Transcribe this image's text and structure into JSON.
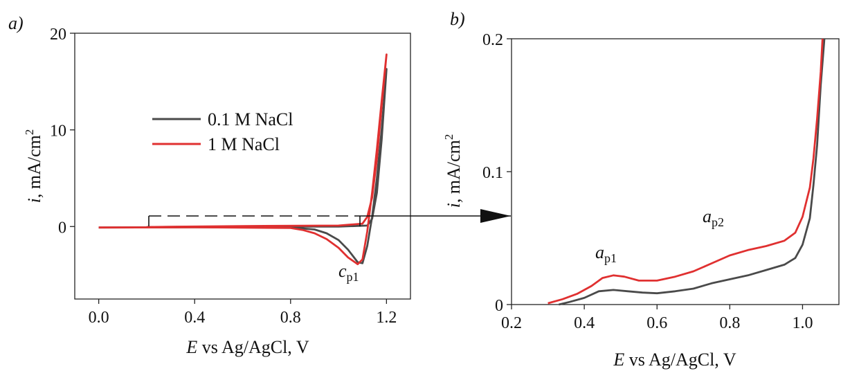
{
  "chart_data": [
    {
      "panel_label": "a)",
      "type": "line",
      "xlabel_italic": "E",
      "xlabel_rest": " vs Ag/AgCl, V",
      "ylabel_italic": "i",
      "ylabel_rest": ", mA/cm",
      "ylabel_sup": "2",
      "xlim": [
        -0.1,
        1.3
      ],
      "ylim": [
        -7.5,
        20
      ],
      "xticks": [
        0.0,
        0.4,
        0.8,
        1.2
      ],
      "xtick_labels": [
        "0.0",
        "0.4",
        "0.8",
        "1.2"
      ],
      "yticks": [
        0,
        10,
        20
      ],
      "ytick_labels": [
        "0",
        "10",
        "20"
      ],
      "grid": false,
      "legend_position": "center-left",
      "series": [
        {
          "name": "0.1 M NaCl",
          "color": "#4a4a4a",
          "points": [
            [
              0.0,
              -0.1
            ],
            [
              0.4,
              -0.08
            ],
            [
              0.8,
              -0.1
            ],
            [
              0.9,
              -0.3
            ],
            [
              0.95,
              -0.7
            ],
            [
              1.0,
              -1.4
            ],
            [
              1.04,
              -2.4
            ],
            [
              1.08,
              -3.7
            ],
            [
              1.1,
              -3.8
            ],
            [
              1.12,
              -2.0
            ],
            [
              1.14,
              1.0
            ],
            [
              1.16,
              5.0
            ],
            [
              1.18,
              10.0
            ],
            [
              1.2,
              16.3
            ],
            [
              1.18,
              9.0
            ],
            [
              1.16,
              3.5
            ],
            [
              1.14,
              0.8
            ],
            [
              1.12,
              0.1
            ],
            [
              1.0,
              0.0
            ],
            [
              0.6,
              0.0
            ],
            [
              0.2,
              -0.05
            ]
          ]
        },
        {
          "name": "1 M NaCl",
          "color": "#e03030",
          "points": [
            [
              0.0,
              -0.1
            ],
            [
              0.4,
              -0.08
            ],
            [
              0.8,
              -0.15
            ],
            [
              0.85,
              -0.35
            ],
            [
              0.9,
              -0.7
            ],
            [
              0.95,
              -1.3
            ],
            [
              1.0,
              -2.2
            ],
            [
              1.04,
              -3.2
            ],
            [
              1.08,
              -3.9
            ],
            [
              1.1,
              -3.4
            ],
            [
              1.12,
              -0.5
            ],
            [
              1.14,
              3.5
            ],
            [
              1.16,
              8.0
            ],
            [
              1.18,
              13.0
            ],
            [
              1.2,
              17.8
            ],
            [
              1.18,
              12.5
            ],
            [
              1.16,
              7.0
            ],
            [
              1.14,
              3.0
            ],
            [
              1.12,
              1.0
            ],
            [
              1.1,
              0.3
            ],
            [
              1.0,
              0.1
            ],
            [
              0.6,
              0.05
            ],
            [
              0.2,
              -0.05
            ]
          ]
        }
      ],
      "annotations": [
        {
          "italic": "c",
          "sub": "p1",
          "x": 1.1,
          "y": -5.3
        }
      ]
    },
    {
      "panel_label": "b)",
      "type": "line",
      "xlabel_italic": "E",
      "xlabel_rest": " vs Ag/AgCl, V",
      "ylabel_italic": "i",
      "ylabel_rest": ", mA/cm",
      "ylabel_sup": "2",
      "xlim": [
        0.2,
        1.1
      ],
      "ylim": [
        0,
        0.2
      ],
      "xticks": [
        0.2,
        0.4,
        0.6,
        0.8,
        1.0
      ],
      "xtick_labels": [
        "0.2",
        "0.4",
        "0.6",
        "0.8",
        "1.0"
      ],
      "yticks": [
        0,
        0.1,
        0.2
      ],
      "ytick_labels": [
        "0",
        "0.1",
        "0.2"
      ],
      "grid": false,
      "series": [
        {
          "name": "0.1 M NaCl",
          "color": "#4a4a4a",
          "points": [
            [
              0.33,
              0.0
            ],
            [
              0.36,
              0.002
            ],
            [
              0.4,
              0.005
            ],
            [
              0.44,
              0.01
            ],
            [
              0.48,
              0.011
            ],
            [
              0.52,
              0.01
            ],
            [
              0.56,
              0.009
            ],
            [
              0.6,
              0.0085
            ],
            [
              0.65,
              0.01
            ],
            [
              0.7,
              0.012
            ],
            [
              0.75,
              0.016
            ],
            [
              0.8,
              0.019
            ],
            [
              0.85,
              0.022
            ],
            [
              0.9,
              0.026
            ],
            [
              0.95,
              0.03
            ],
            [
              0.98,
              0.035
            ],
            [
              1.0,
              0.045
            ],
            [
              1.02,
              0.065
            ],
            [
              1.03,
              0.09
            ],
            [
              1.04,
              0.12
            ],
            [
              1.05,
              0.165
            ],
            [
              1.06,
              0.2
            ]
          ]
        },
        {
          "name": "1 M NaCl",
          "color": "#e03030",
          "points": [
            [
              0.3,
              0.001
            ],
            [
              0.34,
              0.004
            ],
            [
              0.38,
              0.008
            ],
            [
              0.42,
              0.014
            ],
            [
              0.45,
              0.02
            ],
            [
              0.48,
              0.022
            ],
            [
              0.51,
              0.021
            ],
            [
              0.55,
              0.018
            ],
            [
              0.6,
              0.018
            ],
            [
              0.65,
              0.021
            ],
            [
              0.7,
              0.025
            ],
            [
              0.75,
              0.031
            ],
            [
              0.8,
              0.037
            ],
            [
              0.85,
              0.041
            ],
            [
              0.9,
              0.044
            ],
            [
              0.95,
              0.048
            ],
            [
              0.98,
              0.054
            ],
            [
              1.0,
              0.066
            ],
            [
              1.02,
              0.088
            ],
            [
              1.03,
              0.11
            ],
            [
              1.04,
              0.14
            ],
            [
              1.05,
              0.175
            ],
            [
              1.055,
              0.2
            ]
          ]
        }
      ],
      "annotations": [
        {
          "italic": "a",
          "sub": "p1",
          "x": 0.49,
          "y": 0.033
        },
        {
          "italic": "a",
          "sub": "p2",
          "x": 0.87,
          "y": 0.062
        }
      ]
    }
  ]
}
